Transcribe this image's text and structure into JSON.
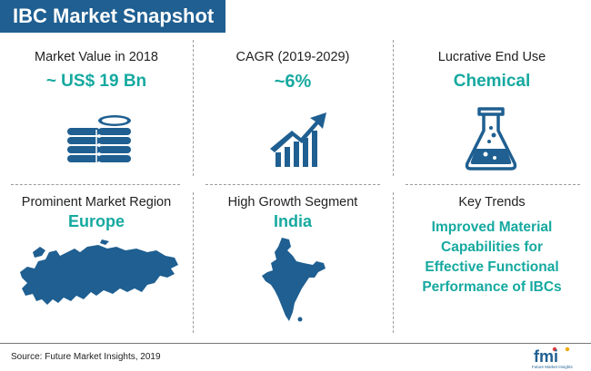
{
  "header": {
    "title": "IBC Market Snapshot"
  },
  "cells": {
    "market_value": {
      "label": "Market Value in 2018",
      "value": "~ US$ 19 Bn",
      "icon": "coins-stack-icon"
    },
    "cagr": {
      "label": "CAGR (2019-2029)",
      "value": "~6%",
      "icon": "growth-chart-icon"
    },
    "end_use": {
      "label": "Lucrative End Use",
      "value": "Chemical",
      "icon": "flask-icon"
    },
    "region": {
      "label": "Prominent Market Region",
      "value": "Europe",
      "icon": "europe-map-icon"
    },
    "segment": {
      "label": "High Growth Segment",
      "value": "India",
      "icon": "india-map-icon"
    },
    "trends": {
      "label": "Key Trends",
      "lines": [
        "Improved Material",
        "Capabilities for",
        "Effective Functional",
        "Performance of IBCs"
      ]
    }
  },
  "footer": {
    "source": "Source: Future Market Insights, 2019",
    "logo_text": "fmi",
    "logo_subtext": "Future Market Insights"
  },
  "colors": {
    "header_bg": "#1f5f91",
    "accent": "#16a9a0",
    "icon": "#1f5f91"
  }
}
